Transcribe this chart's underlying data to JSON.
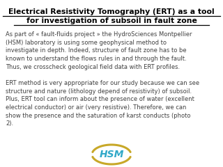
{
  "title_line1": "Electrical Resistivity Tomography (ERT) as a tool",
  "title_line2": "for investigation of subsoil in fault zone",
  "paragraph1": "As part of « fault-fluids project » the HydroSciences Montpellier\n(HSM) laboratory is using some geophysical method to\ninvestigate in depth. Indeed, structure of fault zone has to be\nknown to understand the flows rules in and through the fault.\nThus, we crosscheck geological field data with ERT profiles.",
  "paragraph2": "ERT method is very appropriate for our study because we can see\nstructure and nature (lithology depend of resistivity) of subsoil.\nPlus, ERT tool can inform about the presence of water (excellent\nelectrical conductor) or air (very resistive). Therefore, we can\nshow the presence and the saturation of karst conducts (photo\n2).",
  "bg_color": "#ffffff",
  "title_color": "#000000",
  "text_color": "#404040",
  "title_fontsize": 7.8,
  "body_fontsize": 6.0,
  "hsm_text_color": "#30a8c8",
  "hsm_arc_color": "#c8a828",
  "underline_color": "#000000"
}
